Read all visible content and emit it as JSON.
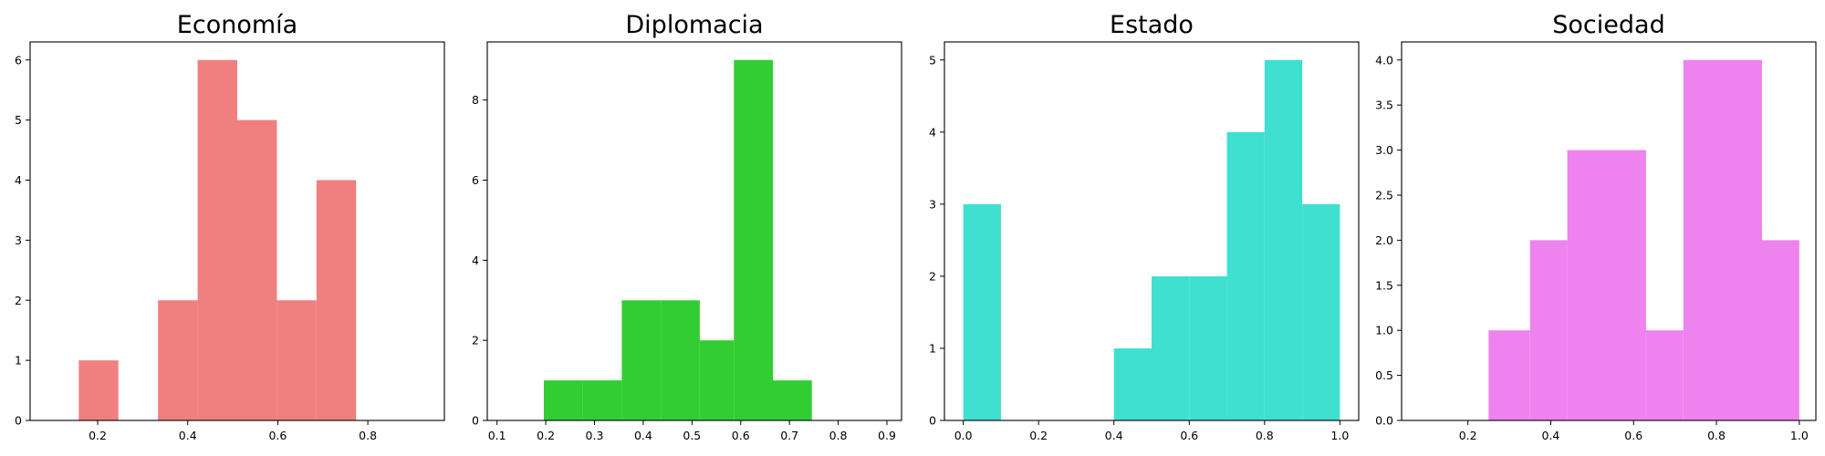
{
  "chart_data": [
    {
      "type": "histogram",
      "title": "Economía",
      "color": "#f08080",
      "xlim": [
        0.05,
        0.97
      ],
      "ylim": [
        0,
        6.3
      ],
      "xticks": [
        "0.2",
        "0.4",
        "0.6",
        "0.8"
      ],
      "xtick_values": [
        0.2,
        0.4,
        0.6,
        0.8
      ],
      "yticks": [
        "0",
        "1",
        "2",
        "3",
        "4",
        "5",
        "6"
      ],
      "ytick_values": [
        0,
        1,
        2,
        3,
        4,
        5,
        6
      ],
      "bins": [
        {
          "x0": 0.158,
          "x1": 0.246,
          "value": 1
        },
        {
          "x0": 0.246,
          "x1": 0.334,
          "value": 0
        },
        {
          "x0": 0.334,
          "x1": 0.422,
          "value": 2
        },
        {
          "x0": 0.422,
          "x1": 0.51,
          "value": 6
        },
        {
          "x0": 0.51,
          "x1": 0.598,
          "value": 5
        },
        {
          "x0": 0.598,
          "x1": 0.686,
          "value": 2
        },
        {
          "x0": 0.686,
          "x1": 0.774,
          "value": 4
        }
      ]
    },
    {
      "type": "histogram",
      "title": "Diplomacia",
      "color": "#32cd32",
      "xlim": [
        0.08,
        0.93
      ],
      "ylim": [
        0,
        9.45
      ],
      "xticks": [
        "0.1",
        "0.2",
        "0.3",
        "0.4",
        "0.5",
        "0.6",
        "0.7",
        "0.8",
        "0.9"
      ],
      "xtick_values": [
        0.1,
        0.2,
        0.3,
        0.4,
        0.5,
        0.6,
        0.7,
        0.8,
        0.9
      ],
      "yticks": [
        "0",
        "2",
        "4",
        "6",
        "8"
      ],
      "ytick_values": [
        0,
        2,
        4,
        6,
        8
      ],
      "bins": [
        {
          "x0": 0.196,
          "x1": 0.276,
          "value": 1
        },
        {
          "x0": 0.276,
          "x1": 0.356,
          "value": 1
        },
        {
          "x0": 0.356,
          "x1": 0.436,
          "value": 3
        },
        {
          "x0": 0.436,
          "x1": 0.516,
          "value": 3
        },
        {
          "x0": 0.516,
          "x1": 0.586,
          "value": 2
        },
        {
          "x0": 0.586,
          "x1": 0.666,
          "value": 9
        },
        {
          "x0": 0.666,
          "x1": 0.746,
          "value": 1
        }
      ]
    },
    {
      "type": "histogram",
      "title": "Estado",
      "color": "#40e0d0",
      "xlim": [
        -0.05,
        1.05
      ],
      "ylim": [
        0,
        5.25
      ],
      "xticks": [
        "0.0",
        "0.2",
        "0.4",
        "0.6",
        "0.8",
        "1.0"
      ],
      "xtick_values": [
        0.0,
        0.2,
        0.4,
        0.6,
        0.8,
        1.0
      ],
      "yticks": [
        "0",
        "1",
        "2",
        "3",
        "4",
        "5"
      ],
      "ytick_values": [
        0,
        1,
        2,
        3,
        4,
        5
      ],
      "bins": [
        {
          "x0": 0.0,
          "x1": 0.1,
          "value": 3
        },
        {
          "x0": 0.1,
          "x1": 0.2,
          "value": 0
        },
        {
          "x0": 0.2,
          "x1": 0.3,
          "value": 0
        },
        {
          "x0": 0.3,
          "x1": 0.4,
          "value": 0
        },
        {
          "x0": 0.4,
          "x1": 0.5,
          "value": 1
        },
        {
          "x0": 0.5,
          "x1": 0.6,
          "value": 2
        },
        {
          "x0": 0.6,
          "x1": 0.7,
          "value": 2
        },
        {
          "x0": 0.7,
          "x1": 0.8,
          "value": 4
        },
        {
          "x0": 0.8,
          "x1": 0.9,
          "value": 5
        },
        {
          "x0": 0.9,
          "x1": 1.0,
          "value": 3
        }
      ]
    },
    {
      "type": "histogram",
      "title": "Sociedad",
      "color": "#ee82ee",
      "xlim": [
        0.04,
        1.04
      ],
      "ylim": [
        0,
        4.2
      ],
      "xticks": [
        "0.2",
        "0.4",
        "0.6",
        "0.8",
        "1.0"
      ],
      "xtick_values": [
        0.2,
        0.4,
        0.6,
        0.8,
        1.0
      ],
      "yticks": [
        "0.0",
        "0.5",
        "1.0",
        "1.5",
        "2.0",
        "2.5",
        "3.0",
        "3.5",
        "4.0"
      ],
      "ytick_values": [
        0,
        0.5,
        1.0,
        1.5,
        2.0,
        2.5,
        3.0,
        3.5,
        4.0
      ],
      "bins": [
        {
          "x0": 0.25,
          "x1": 0.35,
          "value": 1
        },
        {
          "x0": 0.35,
          "x1": 0.44,
          "value": 2
        },
        {
          "x0": 0.44,
          "x1": 0.63,
          "value": 3
        },
        {
          "x0": 0.63,
          "x1": 0.72,
          "value": 1
        },
        {
          "x0": 0.72,
          "x1": 0.91,
          "value": 4
        },
        {
          "x0": 0.91,
          "x1": 1.0,
          "value": 2
        }
      ]
    }
  ]
}
